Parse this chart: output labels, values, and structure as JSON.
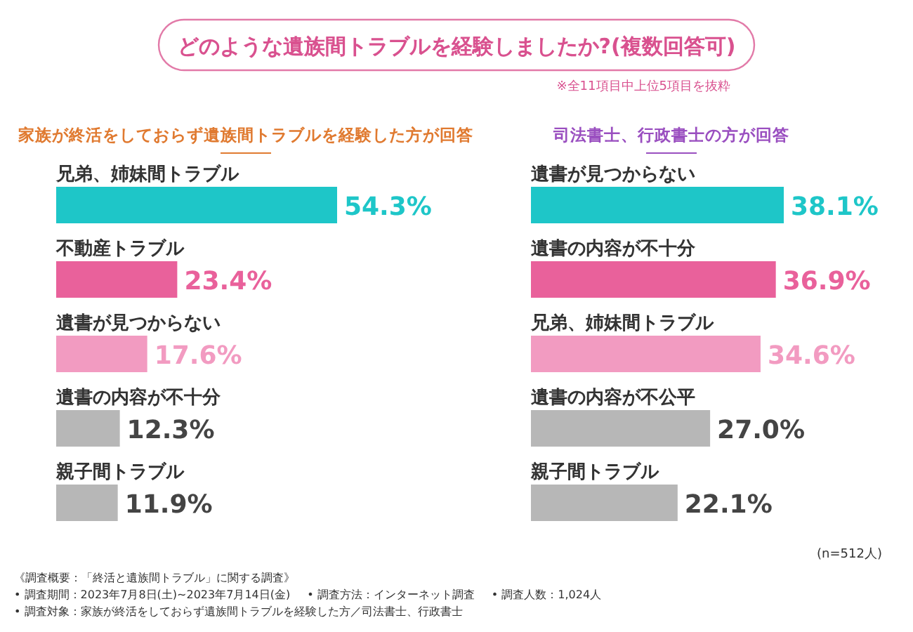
{
  "chart_data": [
    {
      "type": "bar",
      "orientation": "horizontal",
      "title": "どのような遺族間トラブルを経験しましたか?(複数回答可)",
      "subtitle": "家族が終活をしておらず遺族間トラブルを経験した方が回答",
      "categories": [
        "兄弟、姉妹間トラブル",
        "不動産トラブル",
        "遺書が見つからない",
        "遺書の内容が不十分",
        "親子間トラブル"
      ],
      "values": [
        54.3,
        23.4,
        17.6,
        12.3,
        11.9
      ],
      "value_labels": [
        "54.3%",
        "23.4%",
        "17.6%",
        "12.3%",
        "11.9%"
      ],
      "colors": [
        "#1ec6c8",
        "#e9619b",
        "#f29bc1",
        "#b7b7b7",
        "#b7b7b7"
      ],
      "tick_labels": false,
      "annotations": [
        "※全11項目中上位5項目を抜粋",
        "《調査概要：「終活と遺族間トラブル」に関する調査》",
        "• 調査期間：2023年7月8日(土)~2023年7月14日(金)",
        "• 調査方法：インターネット調査",
        "• 調査人数：1,024人",
        "• 調査対象：家族が終活をしておらず遺族間トラブルを経験した方／司法書士、行政書士"
      ]
    },
    {
      "type": "bar",
      "orientation": "horizontal",
      "title": "司法書士、行政書士の方が回答",
      "categories": [
        "遺書が見つからない",
        "遺書の内容が不十分",
        "兄弟、姉妹間トラブル",
        "遺書の内容が不公平",
        "親子間トラブル"
      ],
      "values": [
        38.1,
        36.9,
        34.6,
        27.0,
        22.1
      ],
      "value_labels": [
        "38.1%",
        "36.9%",
        "34.6%",
        "27.0%",
        "22.1%"
      ],
      "colors": [
        "#1ec6c8",
        "#e9619b",
        "#f29bc1",
        "#b7b7b7",
        "#b7b7b7"
      ],
      "tick_labels": false,
      "annotations": [
        "(n=512人)"
      ]
    }
  ]
}
